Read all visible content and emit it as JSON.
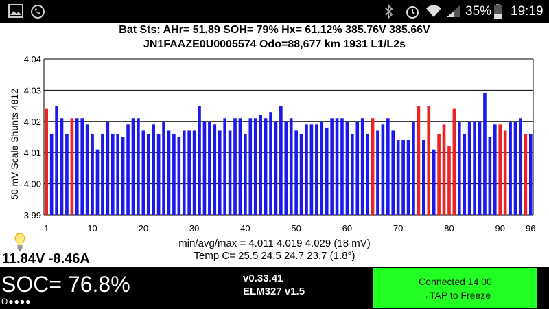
{
  "status_bar": {
    "battery": "35%",
    "time": "19:19",
    "icons": [
      "picture-icon",
      "phone-icon",
      "bluetooth-icon",
      "alarm-icon",
      "wifi-icon",
      "signal-icon",
      "battery-icon"
    ]
  },
  "header": {
    "line1": "Bat Sts:  AHr= 51.89  SOH= 79%   Hx= 61.12%   385.76V 385.66V",
    "line2": "JN1FAAZE0U0005574 Odo=88,677 km  1931 L1/L2s"
  },
  "chart_data": {
    "type": "bar",
    "ylabel": "50 mV Scale   Shunts 4812",
    "ylim": [
      3.99,
      4.04
    ],
    "yticks": [
      "3.99",
      "4.00",
      "4.01",
      "4.02",
      "4.03",
      "4.04"
    ],
    "xticks": [
      "1",
      "10",
      "20",
      "30",
      "40",
      "50",
      "60",
      "70",
      "80",
      "90",
      "96"
    ],
    "grid": "horizontal",
    "bar_colors": {
      "normal": "#1a1aee",
      "shunt": "#ee2222"
    },
    "values": [
      4.024,
      4.016,
      4.025,
      4.021,
      4.016,
      4.021,
      4.021,
      4.021,
      4.019,
      4.016,
      4.011,
      4.016,
      4.02,
      4.016,
      4.016,
      4.015,
      4.019,
      4.021,
      4.021,
      4.017,
      4.016,
      4.019,
      4.016,
      4.02,
      4.017,
      4.016,
      4.015,
      4.017,
      4.017,
      4.017,
      4.025,
      4.02,
      4.02,
      4.019,
      4.017,
      4.021,
      4.017,
      4.021,
      4.021,
      4.016,
      4.021,
      4.021,
      4.022,
      4.021,
      4.023,
      4.02,
      4.025,
      4.02,
      4.021,
      4.017,
      4.016,
      4.019,
      4.019,
      4.019,
      4.02,
      4.018,
      4.021,
      4.021,
      4.021,
      4.02,
      4.016,
      4.02,
      4.021,
      4.016,
      4.021,
      4.017,
      4.019,
      4.021,
      4.017,
      4.014,
      4.014,
      4.014,
      4.02,
      4.025,
      4.014,
      4.025,
      4.011,
      4.016,
      4.019,
      4.012,
      4.024,
      4.02,
      4.016,
      4.02,
      4.02,
      4.02,
      4.029,
      4.015,
      4.019,
      4.019,
      4.017,
      4.02,
      4.02,
      4.021,
      4.016,
      4.016
    ],
    "shunted": [
      1,
      6,
      65,
      74,
      76,
      78,
      79,
      80,
      81,
      90,
      91,
      95
    ]
  },
  "stats": {
    "line1": "min/avg/max = 4.011  4.019  4.029   (18 mV)",
    "line2": "Temp C= 25.5  24.5  24.7  23.7  (1.8°)"
  },
  "voltage_current": "11.84V -8.46A",
  "soc": "SOC= 76.8%",
  "dots": "O●●●●",
  "version": {
    "app": "v0.33.41",
    "adapter": "ELM327 v1.5"
  },
  "connect_button": {
    "line1": "Connected 14 00",
    "line2": "→TAP to Freeze",
    "color": "#22ff22"
  }
}
